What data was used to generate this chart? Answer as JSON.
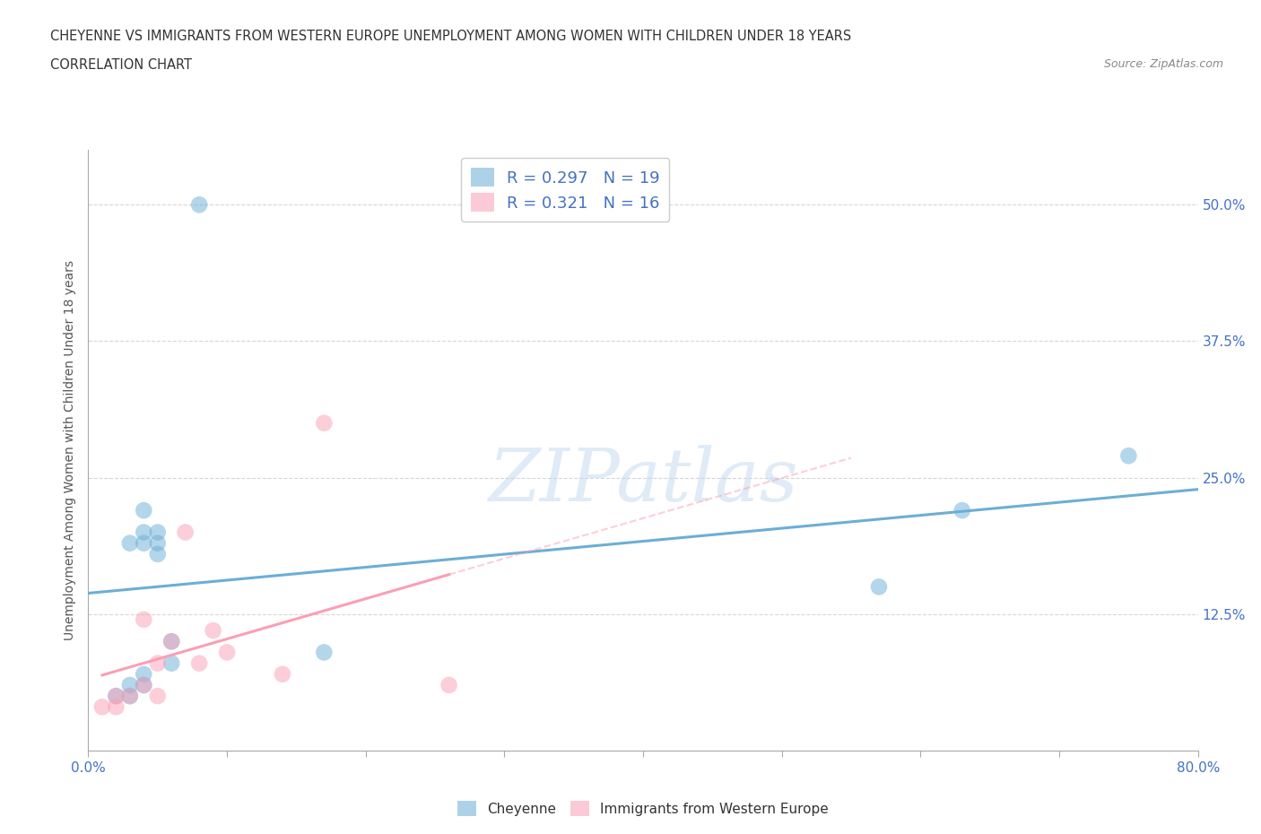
{
  "title_line1": "CHEYENNE VS IMMIGRANTS FROM WESTERN EUROPE UNEMPLOYMENT AMONG WOMEN WITH CHILDREN UNDER 18 YEARS",
  "title_line2": "CORRELATION CHART",
  "source": "Source: ZipAtlas.com",
  "ylabel": "Unemployment Among Women with Children Under 18 years",
  "xlim": [
    0.0,
    0.8
  ],
  "ylim": [
    0.0,
    0.55
  ],
  "xticks": [
    0.0,
    0.1,
    0.2,
    0.3,
    0.4,
    0.5,
    0.6,
    0.7,
    0.8
  ],
  "xticklabels_edges": {
    "0": "0.0%",
    "8": "80.0%"
  },
  "yticks": [
    0.0,
    0.125,
    0.25,
    0.375,
    0.5
  ],
  "yticklabels": [
    "",
    "12.5%",
    "25.0%",
    "37.5%",
    "50.0%"
  ],
  "cheyenne_x": [
    0.02,
    0.03,
    0.03,
    0.03,
    0.04,
    0.04,
    0.04,
    0.04,
    0.04,
    0.05,
    0.05,
    0.05,
    0.06,
    0.06,
    0.08,
    0.17,
    0.57,
    0.63,
    0.75
  ],
  "cheyenne_y": [
    0.05,
    0.05,
    0.06,
    0.19,
    0.06,
    0.07,
    0.19,
    0.2,
    0.22,
    0.18,
    0.19,
    0.2,
    0.08,
    0.1,
    0.5,
    0.09,
    0.15,
    0.22,
    0.27
  ],
  "immigrants_x": [
    0.01,
    0.02,
    0.02,
    0.03,
    0.04,
    0.04,
    0.05,
    0.05,
    0.06,
    0.07,
    0.08,
    0.09,
    0.1,
    0.14,
    0.17,
    0.26
  ],
  "immigrants_y": [
    0.04,
    0.04,
    0.05,
    0.05,
    0.06,
    0.12,
    0.05,
    0.08,
    0.1,
    0.2,
    0.08,
    0.11,
    0.09,
    0.07,
    0.3,
    0.06
  ],
  "cheyenne_color": "#6baed6",
  "immigrants_color": "#fa9fb5",
  "cheyenne_R": 0.297,
  "cheyenne_N": 19,
  "immigrants_R": 0.321,
  "immigrants_N": 16,
  "watermark": "ZIPatlas",
  "legend_label_1": "Cheyenne",
  "legend_label_2": "Immigrants from Western Europe",
  "background_color": "#ffffff",
  "grid_color": "#cccccc",
  "label_color": "#4472c4",
  "tick_color": "#888888"
}
